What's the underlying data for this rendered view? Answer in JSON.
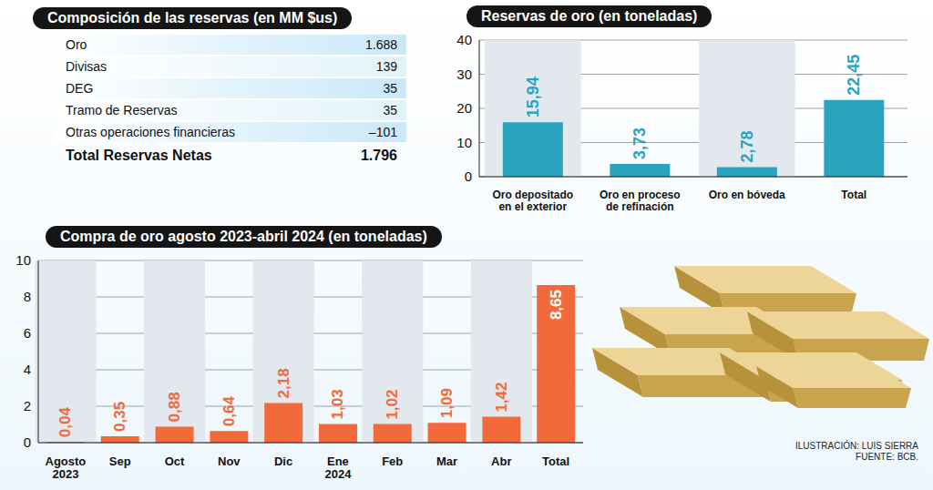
{
  "table": {
    "title": "Composición de las reservas (en MM $us)",
    "rows": [
      [
        "Oro",
        "1.688"
      ],
      [
        "Divisas",
        "139"
      ],
      [
        "DEG",
        "35"
      ],
      [
        "Tramo de Reservas",
        "35"
      ],
      [
        "Otras operaciones financieras",
        "–101"
      ]
    ],
    "total": [
      "Total Reservas Netas",
      "1.796"
    ]
  },
  "chart_data": [
    {
      "type": "bar",
      "title": "Reservas de oro (en toneladas)",
      "categories": [
        "Oro depositado en el exterior",
        "Oro en proceso de refinación",
        "Oro en bóveda",
        "Total"
      ],
      "values": [
        15.94,
        3.73,
        2.78,
        22.45
      ],
      "value_labels": [
        "15,94",
        "3,73",
        "2,78",
        "22,45"
      ],
      "color": "#2aa3bf",
      "ylim": [
        0,
        40
      ],
      "yticks": [
        0,
        10,
        20,
        30,
        40
      ],
      "grid": true,
      "data_labels": true
    },
    {
      "type": "bar",
      "title": "Compra de oro agosto 2023-abril 2024 (en toneladas)",
      "categories": [
        "Agosto 2023",
        "Sep",
        "Oct",
        "Nov",
        "Dic",
        "Ene 2024",
        "Feb",
        "Mar",
        "Abr",
        "Total"
      ],
      "values": [
        0.04,
        0.35,
        0.88,
        0.64,
        2.18,
        1.03,
        1.02,
        1.09,
        1.42,
        8.65
      ],
      "value_labels": [
        "0,04",
        "0,35",
        "0,88",
        "0,64",
        "2,18",
        "1,03",
        "1,02",
        "1,09",
        "1,42",
        "8,65"
      ],
      "color": "#f26a3c",
      "ylim": [
        0,
        10
      ],
      "yticks": [
        0,
        2,
        4,
        6,
        8,
        10
      ],
      "grid": true,
      "data_labels": true
    }
  ],
  "credits": [
    "ILUSTRACIÓN: LUIS SIERRA",
    "FUENTE: BCB."
  ]
}
